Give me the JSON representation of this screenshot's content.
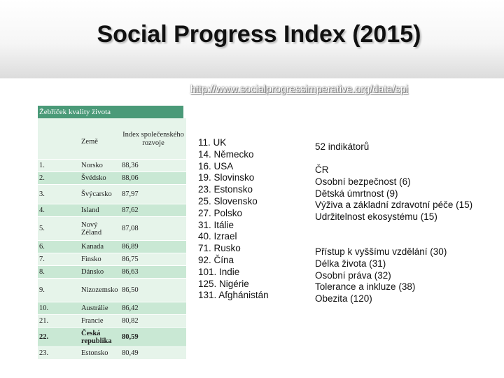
{
  "title": "Social Progress Index (2015)",
  "link": "http://www.socialprogressimperative.org/data/spi",
  "table": {
    "title": "Žebříček kvality života",
    "col_country": "Země",
    "col_score": "Index společenského rozvoje",
    "rows": [
      {
        "rank": "1.",
        "country": "Norsko",
        "score": "88,36"
      },
      {
        "rank": "2.",
        "country": "Švédsko",
        "score": "88,06"
      },
      {
        "rank": "3.",
        "country": "Švýcarsko",
        "score": "87,97"
      },
      {
        "rank": "4.",
        "country": "Island",
        "score": "87,62"
      },
      {
        "rank": "5.",
        "country": "Nový Zéland",
        "score": "87,08"
      },
      {
        "rank": "6.",
        "country": "Kanada",
        "score": "86,89"
      },
      {
        "rank": "7.",
        "country": "Finsko",
        "score": "86,75"
      },
      {
        "rank": "8.",
        "country": "Dánsko",
        "score": "86,63"
      },
      {
        "rank": "9.",
        "country": "Nizozemsko",
        "score": "86,50"
      },
      {
        "rank": "10.",
        "country": "Austrálie",
        "score": "86,42"
      },
      {
        "rank": "21.",
        "country": "Francie",
        "score": "80,82"
      },
      {
        "rank": "22.",
        "country": "Česká republika",
        "score": "80,59"
      },
      {
        "rank": "23.",
        "country": "Estonsko",
        "score": "80,49"
      }
    ]
  },
  "ranking": [
    "11. UK",
    "14. Německo",
    "16. USA",
    "19. Slovinsko",
    "23. Estonsko",
    "25. Slovensko",
    "27. Polsko",
    "31. Itálie",
    "40. Izrael",
    "71. Rusko",
    "92. Čína",
    "101. Indie",
    "125. Nigérie",
    "131. Afghánistán"
  ],
  "indicators": "52 indikátorů",
  "group1": [
    "ČR",
    "Osobní bezpečnost (6)",
    "Dětská úmrtnost (9)",
    "Výživa a základní zdravotní péče (15)",
    "Udržitelnost ekosystému (15)"
  ],
  "group2": [
    "Přístup k vyššímu vzdělání (30)",
    "Délka života (31)",
    "Osobní práva (32)",
    "Tolerance a inkluze (38)",
    "Obezita (120)"
  ],
  "colors": {
    "table_header": "#4a9a78",
    "row_light": "#e6f4ea",
    "row_dark": "#c9e8d4"
  }
}
